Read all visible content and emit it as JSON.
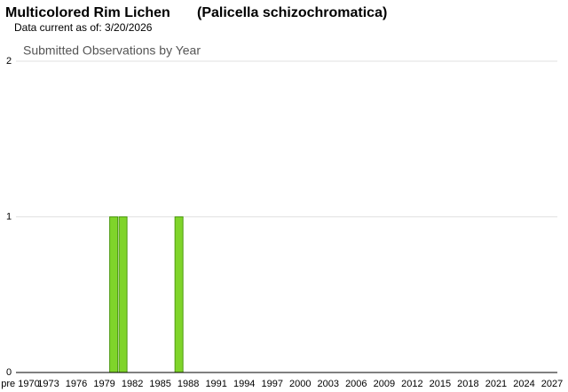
{
  "header": {
    "common_name": "Multicolored Rim Lichen",
    "scientific_name": "(Palicella schizochromatica)",
    "data_date": "Data current as of: 3/20/2026"
  },
  "chart_data": {
    "type": "bar",
    "title": "Submitted Observations by Year",
    "categories": [
      "pre 1970",
      null,
      null,
      "1973",
      null,
      null,
      "1976",
      null,
      null,
      "1979",
      null,
      null,
      "1982",
      null,
      null,
      "1985",
      null,
      null,
      "1988",
      null,
      null,
      "1991",
      null,
      null,
      "1994",
      null,
      null,
      "1997",
      null,
      null,
      "2000",
      null,
      null,
      "2003",
      null,
      null,
      "2006",
      null,
      null,
      "2009",
      null,
      null,
      "2012",
      null,
      null,
      "2015",
      null,
      null,
      "2018",
      null,
      null,
      "2021",
      null,
      null,
      "2024",
      null,
      null,
      "2027"
    ],
    "values": [
      0,
      0,
      0,
      0,
      0,
      0,
      0,
      0,
      0,
      0,
      1,
      1,
      0,
      0,
      0,
      0,
      0,
      1,
      0,
      0,
      0,
      0,
      0,
      0,
      0,
      0,
      0,
      0,
      0,
      0,
      0,
      0,
      0,
      0,
      0,
      0,
      0,
      0,
      0,
      0,
      0,
      0,
      0,
      0,
      0,
      0,
      0,
      0,
      0,
      0,
      0,
      0,
      0,
      0,
      0,
      0,
      0,
      0
    ],
    "color": "#7fd42a",
    "ylim": [
      0,
      2
    ],
    "yticks": [
      0,
      1,
      2
    ],
    "grid": true
  }
}
